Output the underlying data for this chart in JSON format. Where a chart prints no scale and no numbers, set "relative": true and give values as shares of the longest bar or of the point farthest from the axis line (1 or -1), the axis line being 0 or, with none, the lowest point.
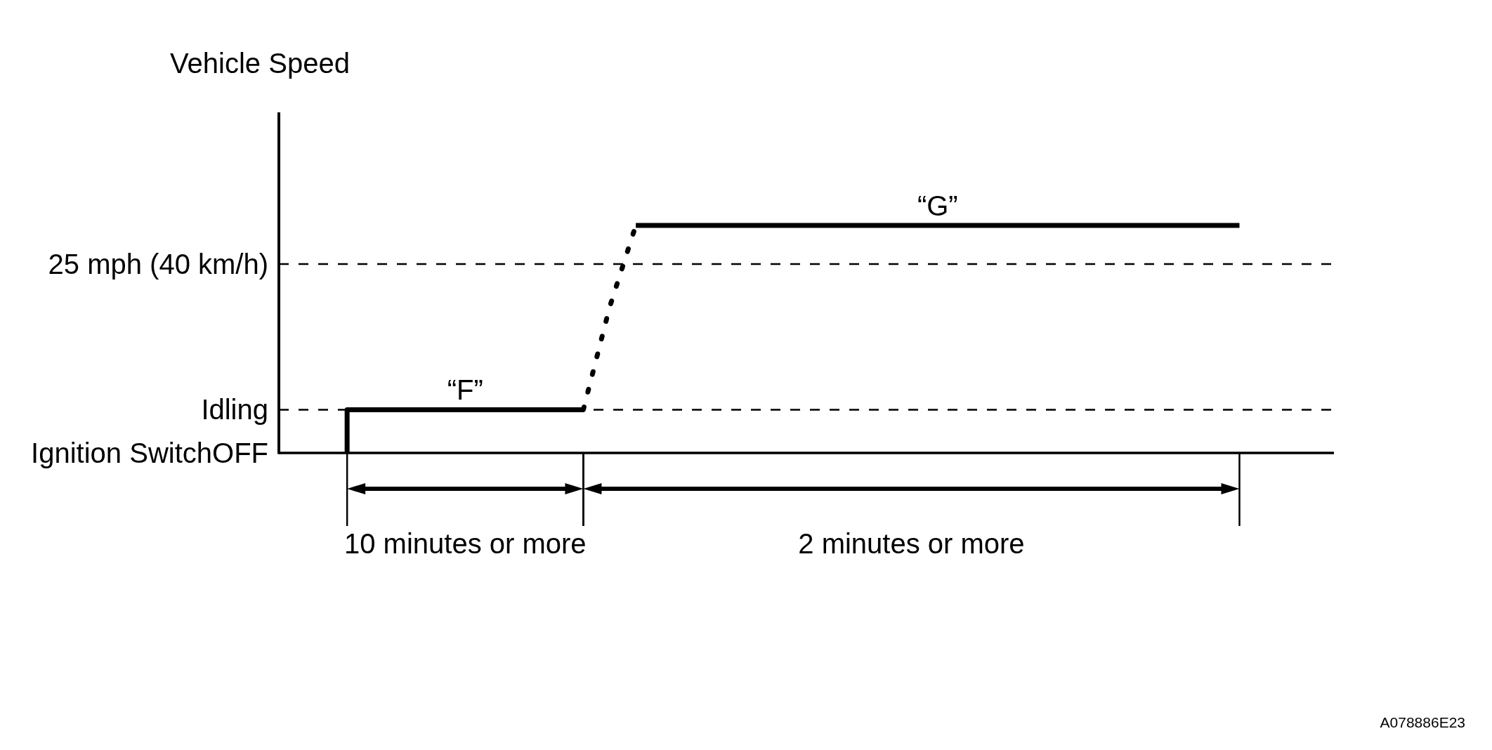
{
  "chart_data": {
    "type": "line",
    "title": "Vehicle Speed",
    "relative": true,
    "categories": [
      null,
      null,
      null,
      null,
      null,
      null,
      null,
      null,
      null,
      null,
      null,
      null,
      null,
      null,
      null,
      null,
      null,
      null,
      null,
      null,
      null,
      null,
      null,
      null,
      null,
      null,
      null,
      null,
      null,
      null,
      null,
      null,
      null,
      null,
      null,
      null,
      null,
      null,
      null,
      null
    ],
    "series": [
      {
        "name": "“F”",
        "type": "step",
        "color": "#000000",
        "line_style": "solid",
        "values": [
          null,
          null,
          0,
          0.19,
          0.19,
          0.19,
          0.19,
          0.19,
          0.19,
          0.19,
          0.19,
          0.19,
          null,
          null,
          null,
          null,
          null,
          null,
          null,
          null,
          null,
          null,
          null,
          null,
          null,
          null,
          null,
          null,
          null,
          null,
          null,
          null,
          null,
          null,
          null,
          null,
          null,
          null,
          null,
          null
        ]
      },
      {
        "color": "#000000",
        "line_style": "dotted",
        "values": [
          null,
          null,
          null,
          null,
          null,
          null,
          null,
          null,
          null,
          null,
          null,
          0.19,
          0.64,
          1,
          null,
          null,
          null,
          null,
          null,
          null,
          null,
          null,
          null,
          null,
          null,
          null,
          null,
          null,
          null,
          null,
          null,
          null,
          null,
          null,
          null,
          null,
          null,
          null,
          null,
          null
        ]
      },
      {
        "name": "“G”",
        "color": "#000000",
        "line_style": "solid",
        "values": [
          null,
          null,
          null,
          null,
          null,
          null,
          null,
          null,
          null,
          null,
          null,
          null,
          null,
          1,
          1,
          1,
          1,
          1,
          1,
          1,
          1,
          1,
          1,
          1,
          1,
          1,
          1,
          1,
          1,
          1,
          1,
          1,
          1,
          1,
          1,
          1,
          1,
          null,
          null,
          null
        ]
      }
    ],
    "ref_lines": [
      {
        "axis": "y",
        "value": 0.83,
        "label": "25 mph (40 km/h)",
        "line_style": "dashed",
        "color": "#000000"
      },
      {
        "axis": "y",
        "value": 0.19,
        "label": "Idling",
        "line_style": "dashed",
        "color": "#000000"
      },
      {
        "axis": "y",
        "value": 0,
        "label": "Ignition SwitchOFF",
        "line_style": "solid",
        "color": "#000000"
      }
    ],
    "annotations": [
      "10 minutes or more",
      "2 minutes or more",
      "A078886E23"
    ]
  }
}
